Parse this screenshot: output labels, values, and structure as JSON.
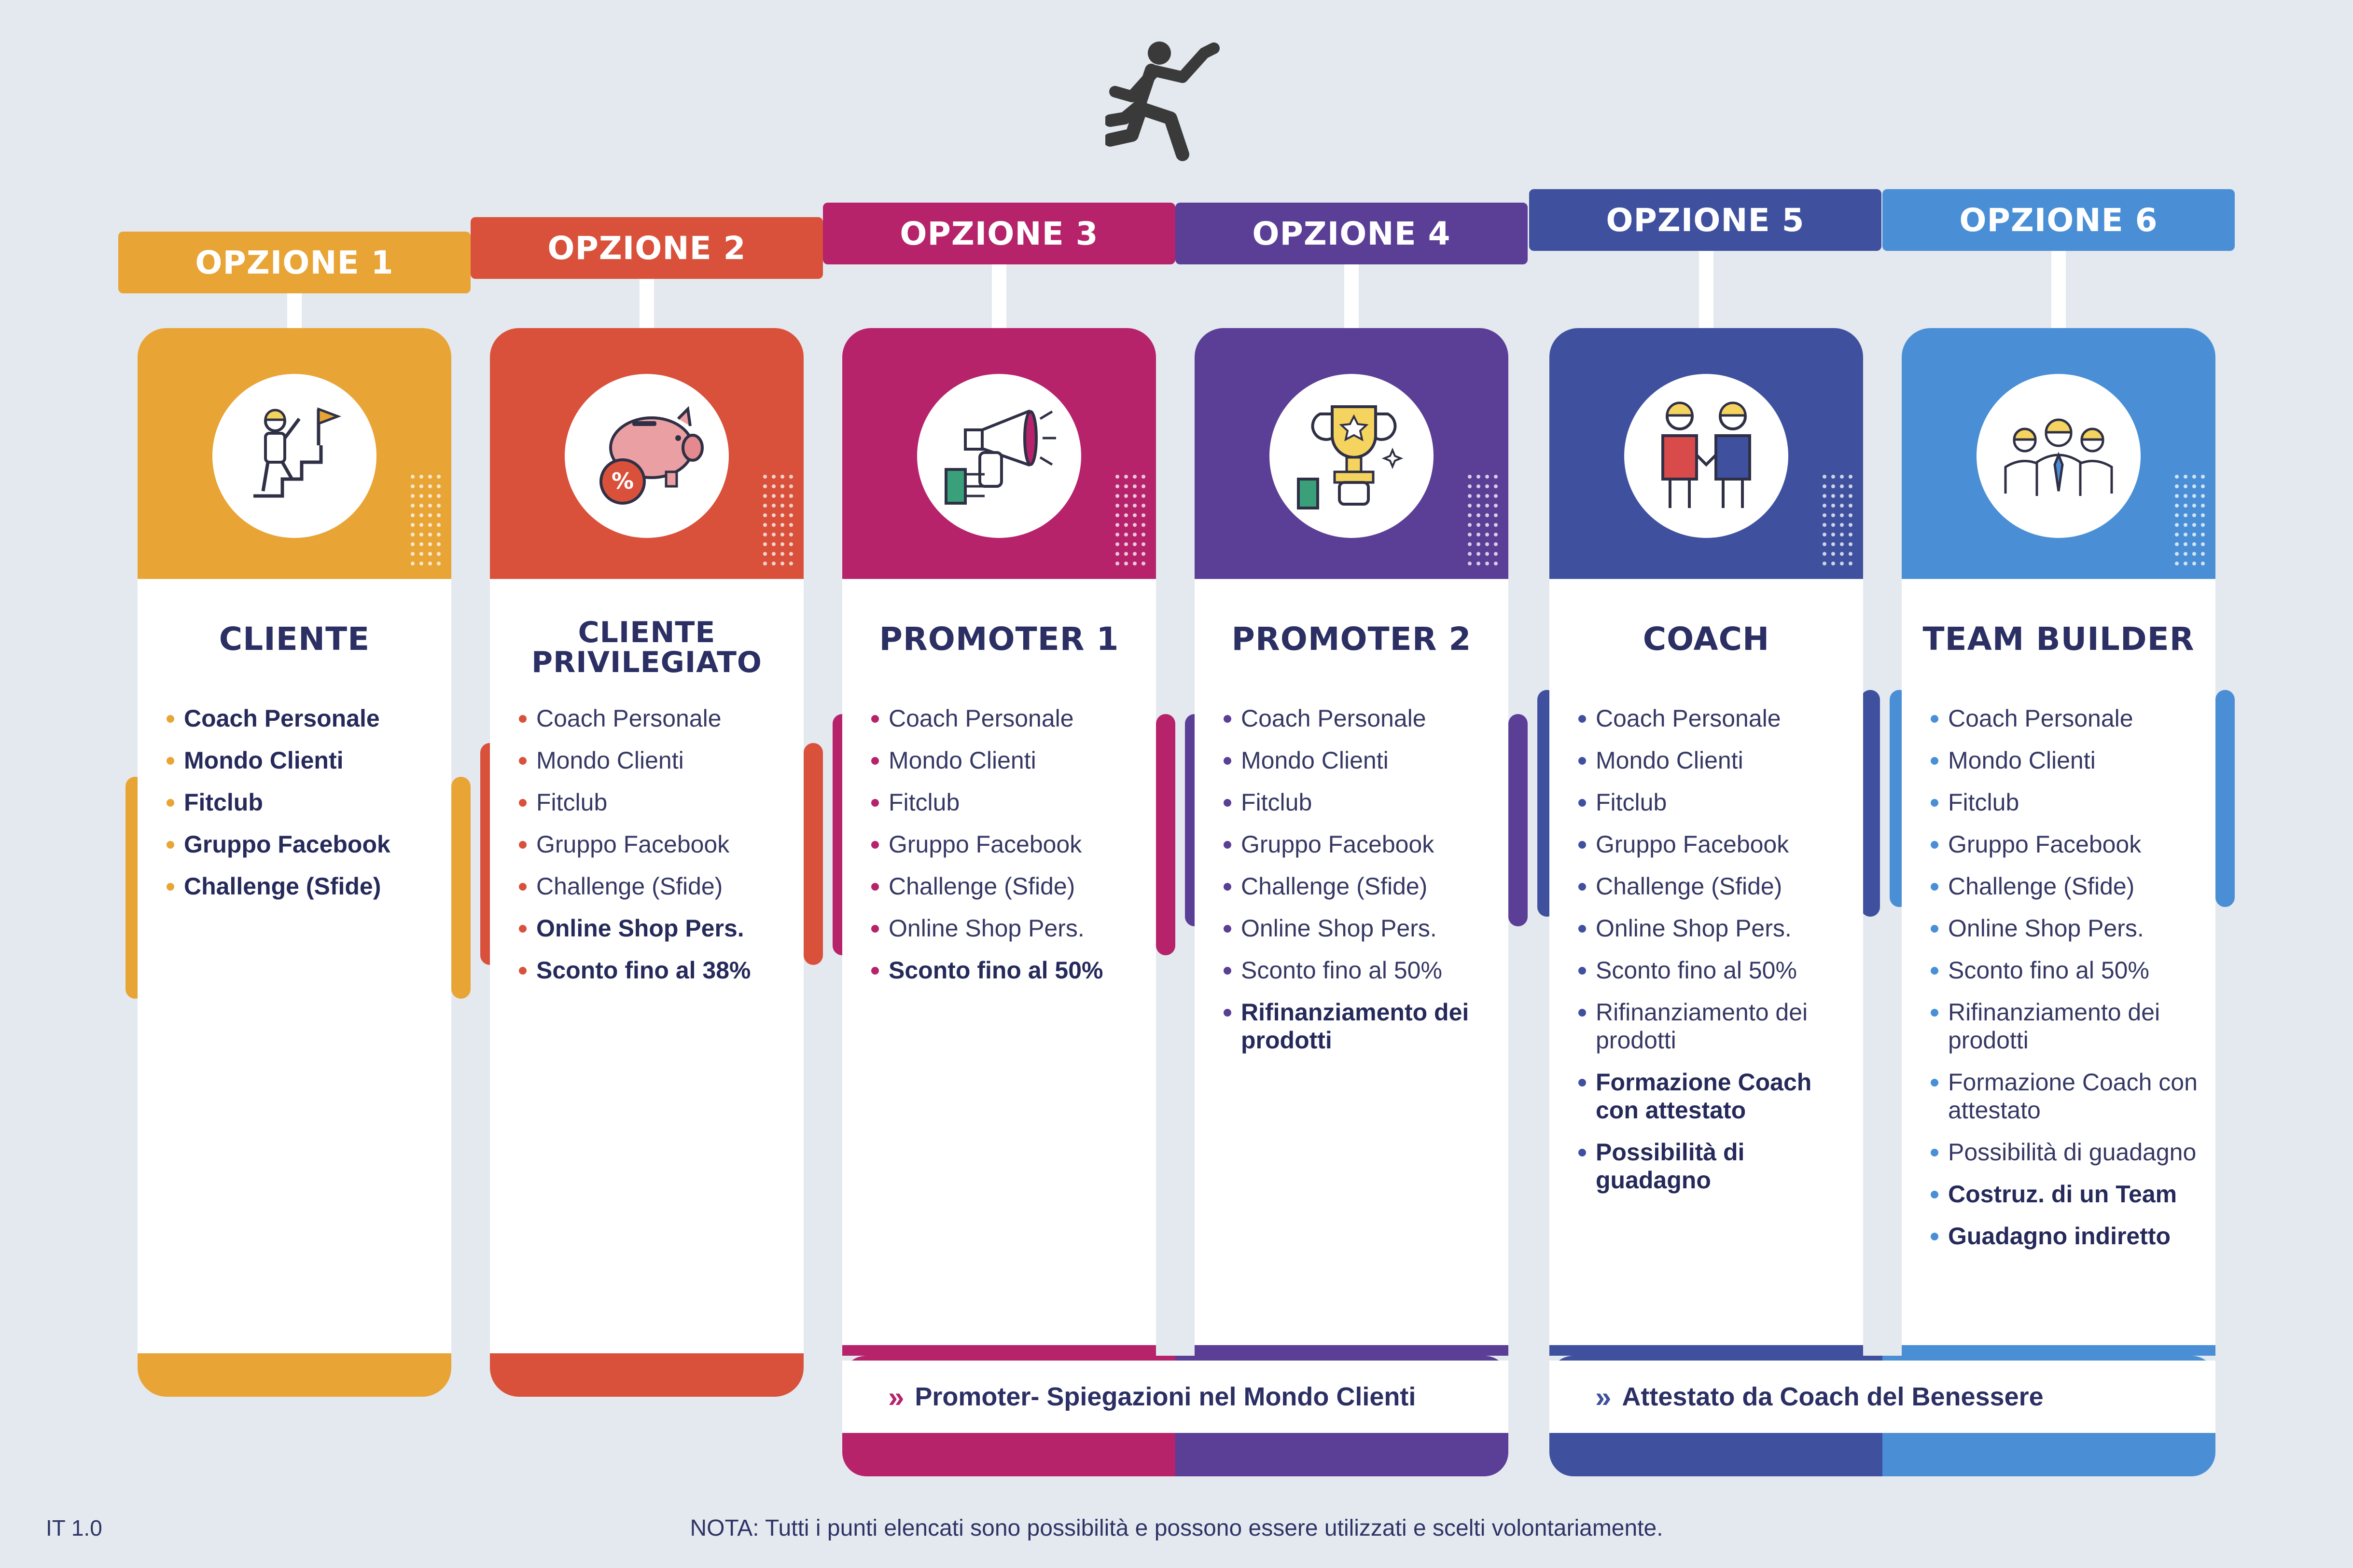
{
  "options": [
    {
      "tab_label": "OPZIONE 1",
      "title": "CLIENTE",
      "color": "#E8A435",
      "icon": "climbing-stairs-flag-icon",
      "features": [
        {
          "text": "Coach Personale",
          "bold": true
        },
        {
          "text": "Mondo Clienti",
          "bold": true
        },
        {
          "text": "Fitclub",
          "bold": true
        },
        {
          "text": "Gruppo Facebook",
          "bold": true
        },
        {
          "text": "Challenge (Sfide)",
          "bold": true
        }
      ]
    },
    {
      "tab_label": "OPZIONE 2",
      "title": "CLIENTE PRIVILEGIATO",
      "color": "#D9513B",
      "icon": "piggy-bank-percent-icon",
      "features": [
        {
          "text": "Coach Personale",
          "bold": false
        },
        {
          "text": "Mondo Clienti",
          "bold": false
        },
        {
          "text": "Fitclub",
          "bold": false
        },
        {
          "text": "Gruppo Facebook",
          "bold": false
        },
        {
          "text": "Challenge (Sfide)",
          "bold": false
        },
        {
          "text": "Online Shop Pers.",
          "bold": true
        },
        {
          "text": "Sconto fino al 38%",
          "bold": true
        }
      ]
    },
    {
      "tab_label": "OPZIONE 3",
      "title": "PROMOTER 1",
      "color": "#B6236B",
      "icon": "megaphone-hand-icon",
      "features": [
        {
          "text": "Coach Personale",
          "bold": false
        },
        {
          "text": "Mondo Clienti",
          "bold": false
        },
        {
          "text": "Fitclub",
          "bold": false
        },
        {
          "text": "Gruppo Facebook",
          "bold": false
        },
        {
          "text": "Challenge (Sfide)",
          "bold": false
        },
        {
          "text": "Online Shop Pers.",
          "bold": false
        },
        {
          "text": "Sconto fino al 50%",
          "bold": true
        }
      ]
    },
    {
      "tab_label": "OPZIONE 4",
      "title": "PROMOTER 2",
      "color": "#5B3E96",
      "icon": "trophy-hand-icon",
      "features": [
        {
          "text": "Coach Personale",
          "bold": false
        },
        {
          "text": "Mondo Clienti",
          "bold": false
        },
        {
          "text": "Fitclub",
          "bold": false
        },
        {
          "text": "Gruppo Facebook",
          "bold": false
        },
        {
          "text": "Challenge (Sfide)",
          "bold": false
        },
        {
          "text": "Online Shop Pers.",
          "bold": false
        },
        {
          "text": "Sconto fino al 50%",
          "bold": false
        },
        {
          "text": "Rifinanziamento dei prodotti",
          "bold": true
        }
      ]
    },
    {
      "tab_label": "OPZIONE 5",
      "title": "COACH",
      "color": "#3F519E",
      "icon": "handshake-people-icon",
      "features": [
        {
          "text": "Coach Personale",
          "bold": false
        },
        {
          "text": "Mondo Clienti",
          "bold": false
        },
        {
          "text": "Fitclub",
          "bold": false
        },
        {
          "text": "Gruppo Facebook",
          "bold": false
        },
        {
          "text": "Challenge (Sfide)",
          "bold": false
        },
        {
          "text": "Online Shop Pers.",
          "bold": false
        },
        {
          "text": "Sconto fino al 50%",
          "bold": false
        },
        {
          "text": "Rifinanziamento dei prodotti",
          "bold": false
        },
        {
          "text": "Formazione Coach con attestato",
          "bold": true
        },
        {
          "text": "Possibilità di guadagno",
          "bold": true
        }
      ]
    },
    {
      "tab_label": "OPZIONE 6",
      "title": "TEAM BUILDER",
      "color": "#4A8FD6",
      "icon": "team-people-icon",
      "features": [
        {
          "text": "Coach Personale",
          "bold": false
        },
        {
          "text": "Mondo Clienti",
          "bold": false
        },
        {
          "text": "Fitclub",
          "bold": false
        },
        {
          "text": "Gruppo Facebook",
          "bold": false
        },
        {
          "text": "Challenge (Sfide)",
          "bold": false
        },
        {
          "text": "Online Shop Pers.",
          "bold": false
        },
        {
          "text": "Sconto fino al 50%",
          "bold": false
        },
        {
          "text": "Rifinanziamento dei prodotti",
          "bold": false
        },
        {
          "text": "Formazione Coach con attestato",
          "bold": false
        },
        {
          "text": "Possibilità di guadagno",
          "bold": false
        },
        {
          "text": "Costruz. di un Team",
          "bold": true
        },
        {
          "text": "Guadagno indiretto",
          "bold": true
        }
      ]
    }
  ],
  "footer_bands": [
    {
      "label": "Promoter- Spiegazioni nel Mondo Clienti",
      "chevron_color": "#B6236B"
    },
    {
      "label": "Attestato da Coach del Benessere",
      "chevron_color": "#3F519E"
    }
  ],
  "note": "NOTA: Tutti i punti elencati sono possibilità e possono essere utilizzati e scelti volontariamente.",
  "version": "IT 1.0",
  "runner_icon": "running-person-icon"
}
